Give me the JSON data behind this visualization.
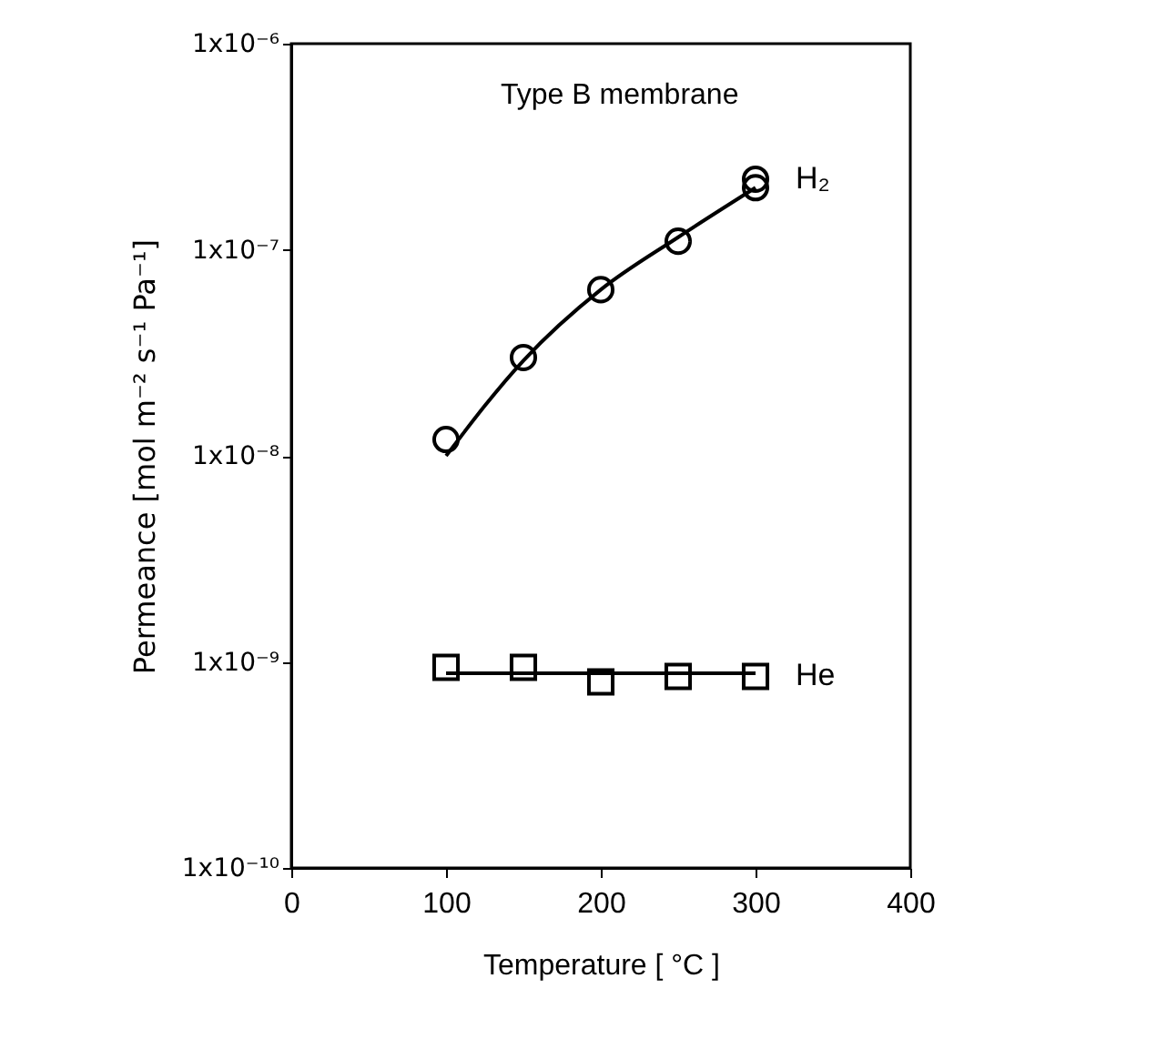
{
  "chart_data": {
    "type": "scatter",
    "xlabel": "Temperature [ °C ]",
    "ylabel": "Permeance [mol m⁻² s⁻¹ Pa⁻¹]",
    "annotations": [
      "Type B membrane"
    ],
    "log": "y",
    "grid": false,
    "xlim": [
      0,
      400
    ],
    "xticks": [
      0,
      100,
      200,
      300,
      400
    ],
    "ylim": [
      1e-10,
      1e-06
    ],
    "yticks": [
      {
        "value": 1e-10,
        "label": "1x10⁻¹⁰"
      },
      {
        "value": 1e-09,
        "label": "1x10⁻⁹"
      },
      {
        "value": 1e-08,
        "label": "1x10⁻⁸"
      },
      {
        "value": 1e-07,
        "label": "1x10⁻⁷"
      },
      {
        "value": 1e-06,
        "label": "1x10⁻⁶"
      }
    ],
    "series": [
      {
        "name": "H₂",
        "type": "scatter",
        "marker": "circle",
        "color": "#000000",
        "x": [
          100,
          150,
          200,
          250,
          300,
          300
        ],
        "values": [
          1.2e-08,
          3e-08,
          6.4e-08,
          1.1e-07,
          2e-07,
          2.2e-07
        ]
      },
      {
        "type": "line",
        "marker": "none",
        "color": "#000000",
        "x": [
          100,
          150,
          200,
          250,
          300
        ],
        "values": [
          1e-08,
          2.9e-08,
          6.4e-08,
          1.15e-07,
          2e-07
        ]
      },
      {
        "name": "He",
        "type": "scatter",
        "marker": "square",
        "color": "#000000",
        "x": [
          100,
          150,
          200,
          250,
          300
        ],
        "values": [
          9.4e-10,
          9.4e-10,
          8e-10,
          8.5e-10,
          8.5e-10
        ]
      },
      {
        "type": "line",
        "marker": "none",
        "color": "#000000",
        "x": [
          100,
          300
        ],
        "values": [
          8.8e-10,
          8.8e-10
        ]
      }
    ]
  }
}
